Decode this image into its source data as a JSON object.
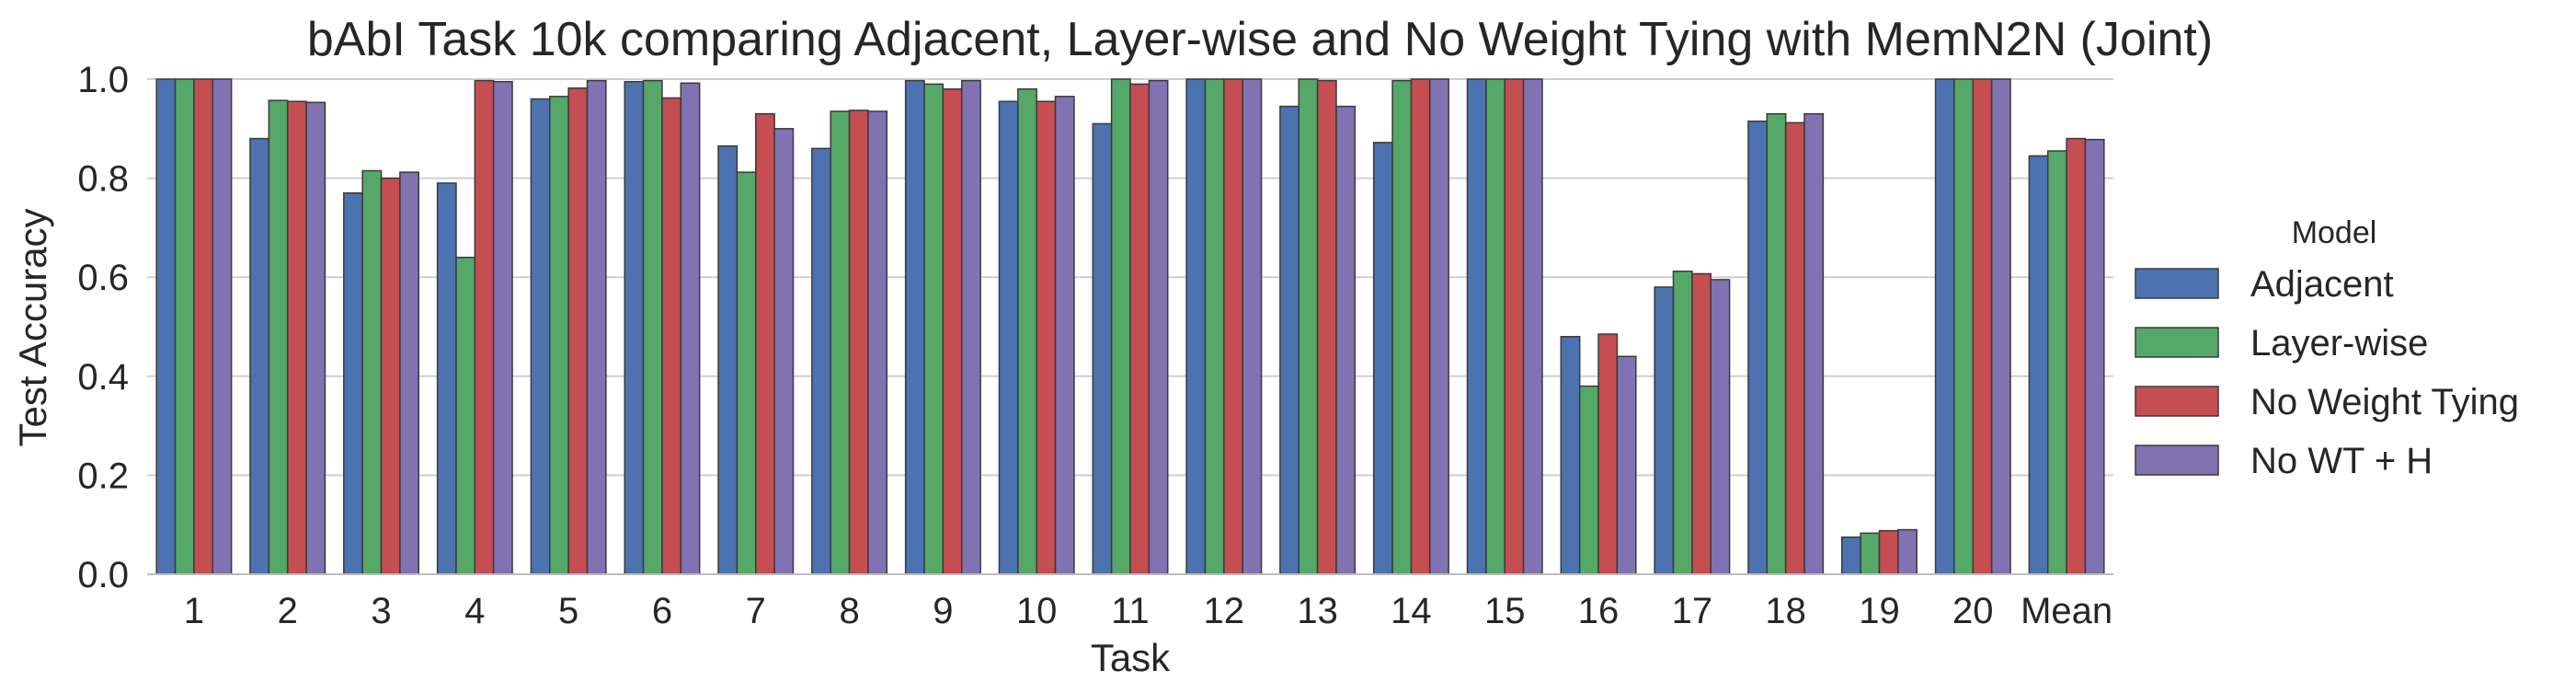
{
  "chart_data": {
    "type": "bar",
    "title": "bAbI Task 10k comparing Adjacent, Layer-wise and No Weight Tying with MemN2N (Joint)",
    "xlabel": "Task",
    "ylabel": "Test Accuracy",
    "ylim": [
      0,
      1.0
    ],
    "yticks": [
      "0.0",
      "0.2",
      "0.4",
      "0.6",
      "0.8",
      "1.0"
    ],
    "grid": true,
    "legend_title": "Model",
    "legend_position": "right",
    "categories": [
      "1",
      "2",
      "3",
      "4",
      "5",
      "6",
      "7",
      "8",
      "9",
      "10",
      "11",
      "12",
      "13",
      "14",
      "15",
      "16",
      "17",
      "18",
      "19",
      "20",
      "Mean"
    ],
    "series": [
      {
        "name": "Adjacent",
        "color": "#4C72B0",
        "values": [
          1.0,
          0.88,
          0.77,
          0.79,
          0.96,
          0.995,
          0.865,
          0.86,
          0.997,
          0.955,
          0.91,
          1.0,
          0.945,
          0.872,
          1.0,
          0.48,
          0.58,
          0.915,
          0.075,
          1.0,
          0.845
        ]
      },
      {
        "name": "Layer-wise",
        "color": "#55A868",
        "values": [
          1.0,
          0.957,
          0.815,
          0.64,
          0.965,
          0.997,
          0.812,
          0.935,
          0.99,
          0.98,
          1.0,
          1.0,
          1.0,
          0.997,
          1.0,
          0.38,
          0.612,
          0.93,
          0.083,
          1.0,
          0.855
        ]
      },
      {
        "name": "No Weight Tying",
        "color": "#C44E52",
        "values": [
          1.0,
          0.955,
          0.8,
          0.997,
          0.982,
          0.962,
          0.93,
          0.937,
          0.98,
          0.955,
          0.99,
          1.0,
          0.997,
          1.0,
          1.0,
          0.485,
          0.607,
          0.912,
          0.088,
          1.0,
          0.88
        ]
      },
      {
        "name": "No WT + H",
        "color": "#8172B2",
        "values": [
          1.0,
          0.953,
          0.812,
          0.995,
          0.997,
          0.992,
          0.9,
          0.935,
          0.997,
          0.965,
          0.997,
          1.0,
          0.945,
          1.0,
          1.0,
          0.44,
          0.595,
          0.93,
          0.09,
          1.0,
          0.878
        ]
      }
    ]
  }
}
